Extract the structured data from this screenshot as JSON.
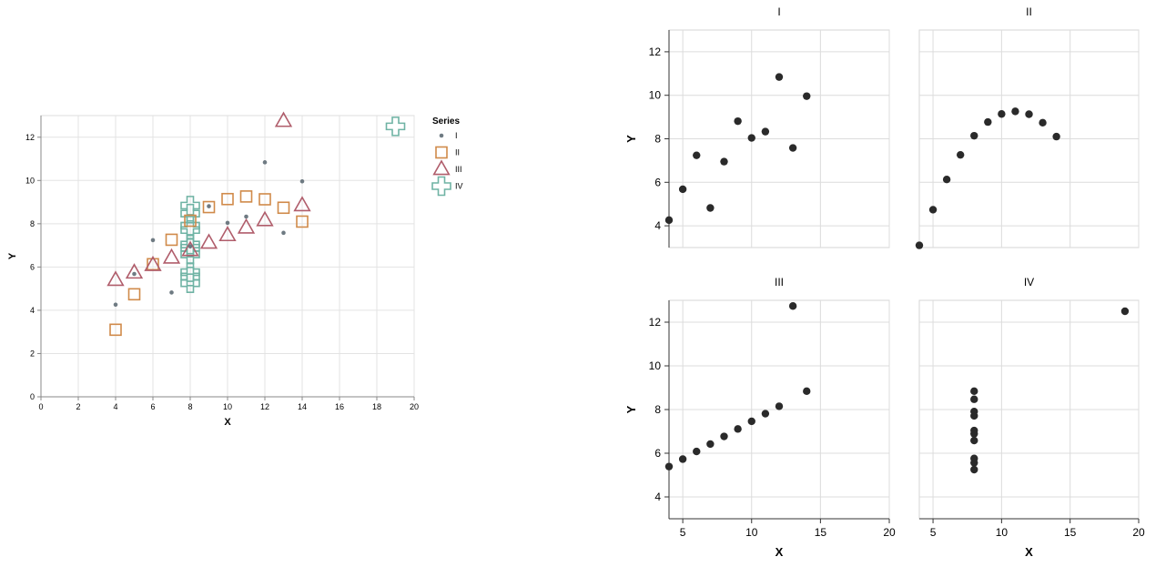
{
  "colors": {
    "I": "#6e7a82",
    "II": "#d08a4a",
    "III": "#b05d6b",
    "IV": "#6fb3a4",
    "dot": "#2a2a2a"
  },
  "chart_data": [
    {
      "type": "scatter",
      "title": "",
      "xlabel": "X",
      "ylabel": "Y",
      "xlim": [
        0,
        20
      ],
      "ylim": [
        0,
        13
      ],
      "xticks": [
        "0",
        "2",
        "4",
        "6",
        "8",
        "10",
        "12",
        "14",
        "16",
        "18",
        "20"
      ],
      "yticks": [
        "0",
        "2",
        "4",
        "6",
        "8",
        "10",
        "12"
      ],
      "legend": {
        "title": "Series",
        "position": "right",
        "entries": [
          "I",
          "II",
          "III",
          "IV"
        ]
      },
      "series": [
        {
          "name": "I",
          "shape": "circle",
          "x": [
            10,
            8,
            13,
            9,
            11,
            14,
            6,
            4,
            12,
            7,
            5
          ],
          "y": [
            8.04,
            6.95,
            7.58,
            8.81,
            8.33,
            9.96,
            7.24,
            4.26,
            10.84,
            4.82,
            5.68
          ]
        },
        {
          "name": "II",
          "shape": "square",
          "x": [
            10,
            8,
            13,
            9,
            11,
            14,
            6,
            4,
            12,
            7,
            5
          ],
          "y": [
            9.14,
            8.14,
            8.74,
            8.77,
            9.26,
            8.1,
            6.13,
            3.1,
            9.13,
            7.26,
            4.74
          ]
        },
        {
          "name": "III",
          "shape": "triangle",
          "x": [
            10,
            8,
            13,
            9,
            11,
            14,
            6,
            4,
            12,
            7,
            5
          ],
          "y": [
            7.46,
            6.77,
            12.74,
            7.11,
            7.81,
            8.84,
            6.08,
            5.39,
            8.15,
            6.42,
            5.73
          ]
        },
        {
          "name": "IV",
          "shape": "cross",
          "x": [
            8,
            8,
            8,
            8,
            8,
            8,
            8,
            19,
            8,
            8,
            8
          ],
          "y": [
            6.58,
            5.76,
            7.71,
            8.84,
            8.47,
            7.04,
            5.25,
            12.5,
            5.56,
            7.91,
            6.89
          ]
        }
      ]
    },
    {
      "type": "scatter",
      "facets": [
        {
          "title": "I",
          "xlim": [
            4,
            20
          ],
          "ylim": [
            3,
            13
          ],
          "x": [
            10,
            8,
            13,
            9,
            11,
            14,
            6,
            4,
            12,
            7,
            5
          ],
          "y": [
            8.04,
            6.95,
            7.58,
            8.81,
            8.33,
            9.96,
            7.24,
            4.26,
            10.84,
            4.82,
            5.68
          ]
        },
        {
          "title": "II",
          "xlim": [
            4,
            20
          ],
          "ylim": [
            3,
            13
          ],
          "x": [
            10,
            8,
            13,
            9,
            11,
            14,
            6,
            4,
            12,
            7,
            5
          ],
          "y": [
            9.14,
            8.14,
            8.74,
            8.77,
            9.26,
            8.1,
            6.13,
            3.1,
            9.13,
            7.26,
            4.74
          ]
        },
        {
          "title": "III",
          "xlim": [
            4,
            20
          ],
          "ylim": [
            3,
            13
          ],
          "x": [
            10,
            8,
            13,
            9,
            11,
            14,
            6,
            4,
            12,
            7,
            5
          ],
          "y": [
            7.46,
            6.77,
            12.74,
            7.11,
            7.81,
            8.84,
            6.08,
            5.39,
            8.15,
            6.42,
            5.73
          ]
        },
        {
          "title": "IV",
          "xlim": [
            4,
            20
          ],
          "ylim": [
            3,
            13
          ],
          "x": [
            8,
            8,
            8,
            8,
            8,
            8,
            8,
            19,
            8,
            8,
            8
          ],
          "y": [
            6.58,
            5.76,
            7.71,
            8.84,
            8.47,
            7.04,
            5.25,
            12.5,
            5.56,
            7.91,
            6.89
          ]
        }
      ],
      "xticks": [
        "5",
        "10",
        "15",
        "20"
      ],
      "yticks": [
        "4",
        "6",
        "8",
        "10",
        "12"
      ],
      "xlabel": "X",
      "ylabel": "Y"
    }
  ]
}
